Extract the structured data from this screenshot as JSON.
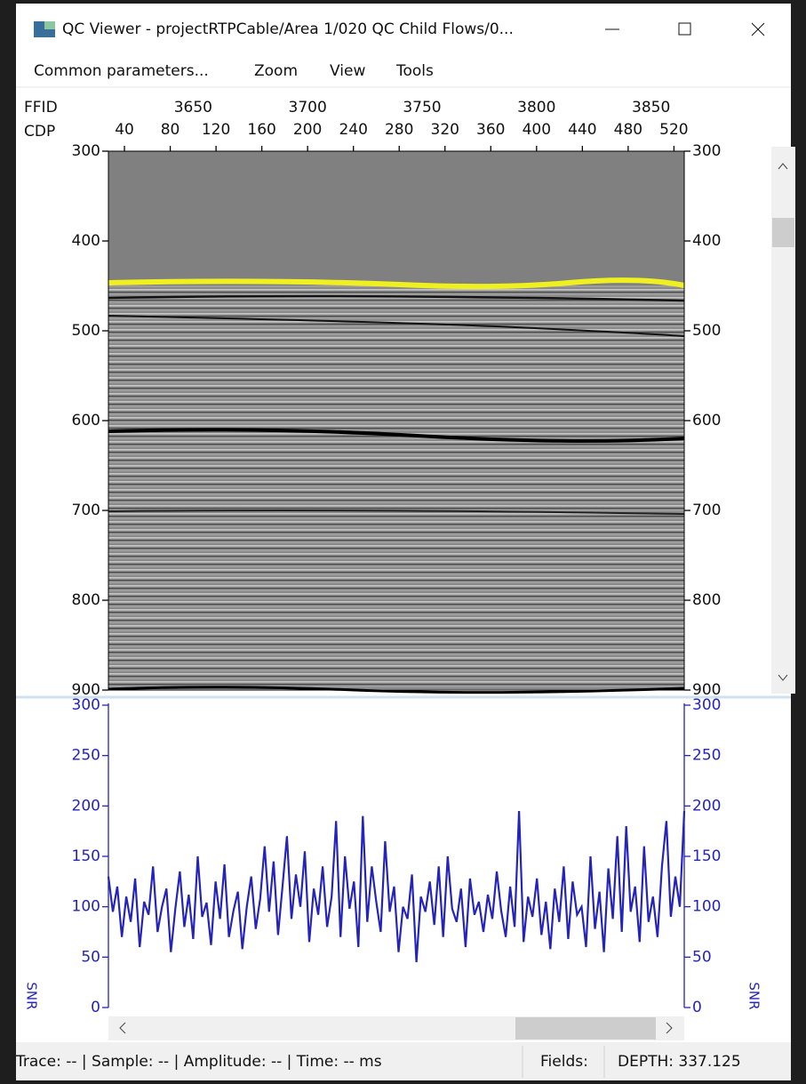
{
  "window": {
    "title": "QC Viewer - projectRTPCable/Area 1/020 QC Child Flows/0..."
  },
  "menu": [
    "Common parameters...",
    "Zoom",
    "View",
    "Tools"
  ],
  "section": {
    "ffid_label": "FFID",
    "cdp_label": "CDP",
    "ffid_lim": [
      3613,
      3864.5
    ],
    "ffid_ticks": [
      3650,
      3700,
      3750,
      3800,
      3850
    ],
    "cdp_lim": [
      26,
      529
    ],
    "cdp_ticks": [
      40,
      80,
      120,
      160,
      200,
      240,
      280,
      320,
      360,
      400,
      440,
      480,
      520
    ],
    "depth_lim": [
      300,
      900
    ],
    "depth_ticks": [
      300,
      400,
      500,
      600,
      700,
      800,
      900
    ]
  },
  "snr": {
    "type": "line",
    "axis_label": "SNR",
    "color": "#2424bc",
    "ylim": [
      0,
      300
    ],
    "yticks": [
      0,
      50,
      100,
      150,
      200,
      250,
      300
    ],
    "values": [
      130,
      95,
      120,
      70,
      110,
      85,
      128,
      60,
      105,
      92,
      140,
      75,
      100,
      118,
      55,
      98,
      135,
      80,
      112,
      68,
      150,
      90,
      104,
      62,
      125,
      88,
      142,
      70,
      96,
      115,
      58,
      100,
      130,
      78,
      108,
      160,
      95,
      145,
      72,
      120,
      170,
      88,
      132,
      100,
      155,
      65,
      118,
      92,
      140,
      80,
      110,
      185,
      70,
      150,
      98,
      125,
      60,
      190,
      85,
      140,
      105,
      75,
      165,
      95,
      120,
      55,
      100,
      88,
      132,
      45,
      110,
      95,
      125,
      82,
      140,
      70,
      150,
      98,
      85,
      118,
      60,
      128,
      92,
      105,
      75,
      112,
      88,
      135,
      96,
      70,
      120,
      80,
      195,
      65,
      110,
      90,
      128,
      72,
      105,
      58,
      118,
      85,
      140,
      68,
      125,
      92,
      100,
      60,
      150,
      78,
      115,
      55,
      138,
      88,
      170,
      75,
      180,
      95,
      120,
      65,
      160,
      85,
      110,
      70,
      140,
      185,
      90,
      130,
      100,
      195
    ]
  },
  "status": {
    "position": "Trace: -- | Sample: -- | Amplitude: -- | Time: -- ms",
    "fields_label": "Fields:",
    "depth": "DEPTH: 337.125"
  }
}
